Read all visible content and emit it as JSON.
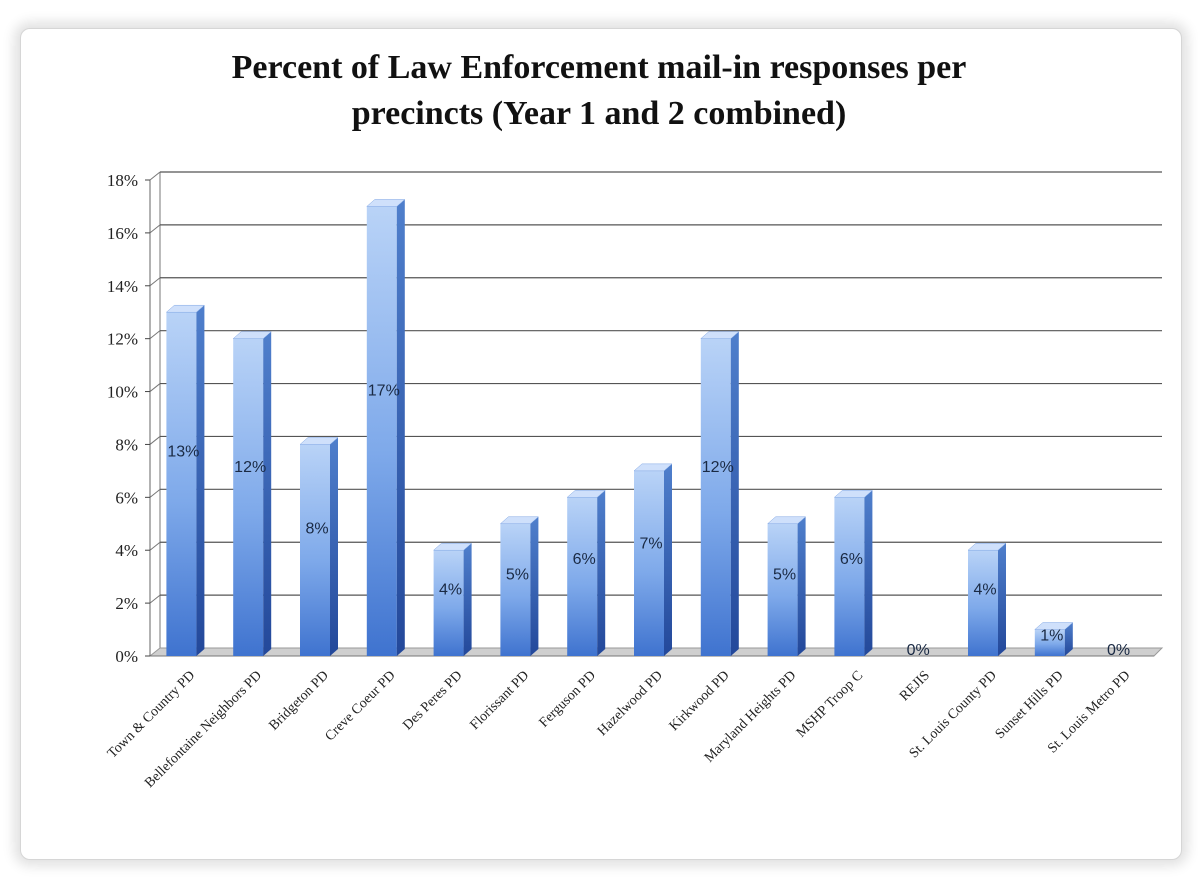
{
  "chart_data": {
    "type": "bar",
    "title": "Percent of Law Enforcement mail-in responses per precincts (Year 1 and 2 combined)",
    "title_lines": [
      "Percent of Law Enforcement mail-in responses per",
      "precincts (Year 1 and 2 combined)"
    ],
    "xlabel": "",
    "ylabel": "",
    "categories": [
      "Town & Country PD",
      "Bellefontaine Neighbors PD",
      "Bridgeton PD",
      "Creve Coeur PD",
      "Des Peres PD",
      "Florissant PD",
      "Ferguson PD",
      "Hazelwood PD",
      "Kirkwood PD",
      "Maryland Heights PD",
      "MSHP Troop C",
      "REJIS",
      "St. Louis County PD",
      "Sunset Hills PD",
      "St. Louis Metro PD"
    ],
    "values": [
      13,
      12,
      8,
      17,
      4,
      5,
      6,
      7,
      12,
      5,
      6,
      0,
      4,
      1,
      0
    ],
    "data_labels": [
      "13%",
      "12%",
      "8%",
      "17%",
      "4%",
      "5%",
      "6%",
      "7%",
      "12%",
      "5%",
      "6%",
      "0%",
      "4%",
      "1%",
      "0%"
    ],
    "yticks": [
      "0%",
      "2%",
      "4%",
      "6%",
      "8%",
      "10%",
      "12%",
      "14%",
      "16%",
      "18%"
    ],
    "ylim": [
      0,
      18
    ],
    "grid": true,
    "legend": "none",
    "colors": {
      "bar_light": "#a9c8f5",
      "bar_mid": "#5b8fe0",
      "bar_dark": "#2f5fb8",
      "grid": "#555555",
      "floor": "#cfcfcf"
    }
  }
}
